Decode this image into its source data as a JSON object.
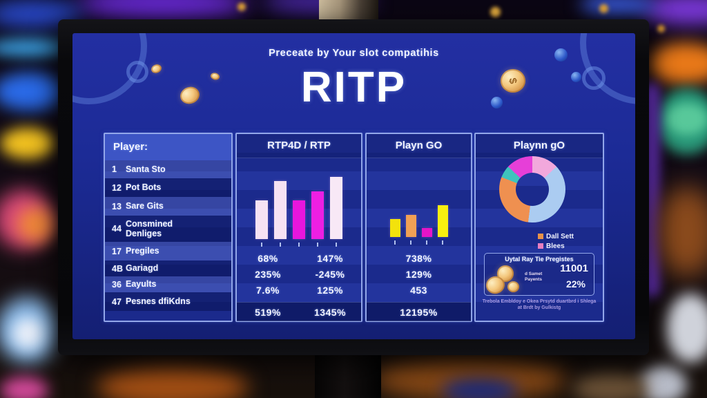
{
  "screen": {
    "subtitle": "Preceate by Your slot compatihis",
    "title": "RITP"
  },
  "player_panel": {
    "header": "Player:",
    "rows": [
      {
        "num": "1",
        "name": "Santa Sto"
      },
      {
        "num": "12",
        "name": "Pot Bots"
      },
      {
        "num": "13",
        "name": "Sare Gits"
      },
      {
        "num": "44",
        "name": "Consmined\nDenliges"
      },
      {
        "num": "17",
        "name": "Pregiles"
      },
      {
        "num": "4B",
        "name": "Gariagd"
      },
      {
        "num": "36",
        "name": "Eayults"
      },
      {
        "num": "47",
        "name": "Pesnes dfiKdns"
      }
    ]
  },
  "rtp_panel": {
    "header": "RTP4D / RTP",
    "rows": [
      [
        "68%",
        "147%"
      ],
      [
        "235%",
        "-245%"
      ],
      [
        "7.6%",
        "125%"
      ],
      [
        "519%",
        "1345%"
      ]
    ]
  },
  "playngo_panel": {
    "header": "Playn GO",
    "values": [
      "738%",
      "129%",
      "453",
      "12195%"
    ]
  },
  "donut_panel": {
    "header": "Playnn gO",
    "legend": [
      {
        "label": "Dall Sett",
        "color": "#e8924a"
      },
      {
        "label": "Blees",
        "color": "#e87fc0"
      }
    ],
    "info_box": {
      "title": "Uytal Ray Tie Pregistes",
      "coin_caption": "d Samet\nPayents",
      "value1": "11001",
      "value2": "22%"
    },
    "footnote_line1": "Trebola Embldoy e Okea Prsytd duartbrd i Shlega",
    "footnote_line2": "at Brdt by Gulkistg"
  },
  "decor": {
    "coin_symbol": "$"
  },
  "chart_data": [
    {
      "type": "bar",
      "title": "RTP4D / RTP",
      "categories": [
        "",
        "",
        "",
        "",
        ""
      ],
      "values": [
        62,
        93,
        62,
        77,
        100
      ],
      "ymax": 100,
      "colors": [
        "#f6e2f3",
        "#f6e2f3",
        "#e816dd",
        "#ed1fe3",
        "#f8e8f6"
      ],
      "grid": false,
      "legend": "none"
    },
    {
      "type": "bar",
      "title": "Playn GO",
      "categories": [
        "",
        "",
        "",
        ""
      ],
      "values": [
        56,
        69,
        29,
        100
      ],
      "ymax": 100,
      "colors": [
        "#f3e20c",
        "#f0a055",
        "#e414c8",
        "#f8ef10"
      ],
      "grid": false,
      "legend": "none"
    },
    {
      "type": "pie",
      "title": "Playnn gO",
      "donut": true,
      "slices": [
        {
          "label": "light-pink",
          "value": 13,
          "color": "#f2a8dc"
        },
        {
          "label": "light-blue",
          "value": 39,
          "color": "#abccf1"
        },
        {
          "label": "orange",
          "value": 29,
          "color": "#ef9050"
        },
        {
          "label": "teal",
          "value": 6,
          "color": "#3fc4bc"
        },
        {
          "label": "magenta",
          "value": 13,
          "color": "#e63fd8"
        }
      ],
      "legend_position": "bottom-right"
    }
  ]
}
